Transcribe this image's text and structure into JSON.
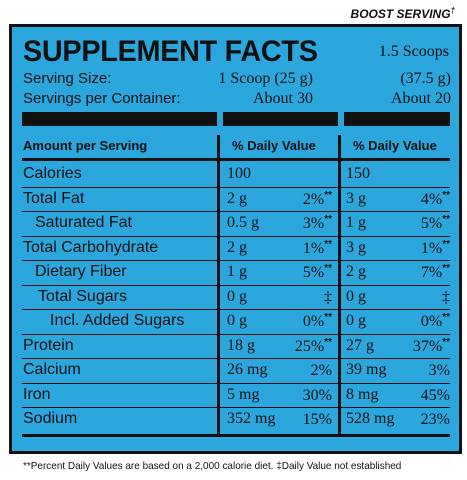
{
  "boost_label": "BOOST SERVING",
  "boost_mark": "†",
  "title": "SUPPLEMENT FACTS",
  "boost_scoops": "1.5 Scoops",
  "serving_size_label": "Serving Size:",
  "serving_size_1": "1 Scoop (25 g)",
  "serving_size_2": "(37.5 g)",
  "servings_label": "Servings per Container:",
  "servings_1": "About 30",
  "servings_2": "About 20",
  "header": {
    "amount": "Amount per Serving",
    "dv1": "% Daily Value",
    "dv2": "% Daily Value"
  },
  "rows": [
    {
      "name": "Calories",
      "v1": "100",
      "p1": "",
      "m1": "",
      "v2": "150",
      "p2": "",
      "m2": ""
    },
    {
      "name": "Total Fat",
      "v1": "2 g",
      "p1": "2%",
      "m1": "**",
      "v2": "3 g",
      "p2": "4%",
      "m2": "**"
    },
    {
      "name": "Saturated Fat",
      "v1": "0.5 g",
      "p1": "3%",
      "m1": "**",
      "v2": "1 g",
      "p2": "5%",
      "m2": "**"
    },
    {
      "name": "Total Carbohydrate",
      "v1": "2 g",
      "p1": "1%",
      "m1": "**",
      "v2": "3 g",
      "p2": "1%",
      "m2": "**"
    },
    {
      "name": "Dietary Fiber",
      "v1": "1 g",
      "p1": "5%",
      "m1": "**",
      "v2": "2 g",
      "p2": "7%",
      "m2": "**"
    },
    {
      "name": "Total Sugars",
      "v1": "0 g",
      "p1": "‡",
      "m1": "",
      "v2": "0 g",
      "p2": "‡",
      "m2": ""
    },
    {
      "name": "Incl. Added Sugars",
      "v1": "0 g",
      "p1": "0%",
      "m1": "**",
      "v2": "0 g",
      "p2": "0%",
      "m2": "**"
    },
    {
      "name": "Protein",
      "v1": "18 g",
      "p1": "25%",
      "m1": "**",
      "v2": "27 g",
      "p2": "37%",
      "m2": "**"
    },
    {
      "name": "Calcium",
      "v1": "26 mg",
      "p1": "2%",
      "m1": "",
      "v2": "39 mg",
      "p2": "3%",
      "m2": ""
    },
    {
      "name": "Iron",
      "v1": "5 mg",
      "p1": "30%",
      "m1": "",
      "v2": "8 mg",
      "p2": "45%",
      "m2": ""
    },
    {
      "name": "Sodium",
      "v1": "352 mg",
      "p1": "15%",
      "m1": "",
      "v2": "528 mg",
      "p2": "23%",
      "m2": ""
    }
  ],
  "footnote": "**Percent Daily Values are based on a 2,000 calorie diet.  ‡Daily Value not established",
  "colors": {
    "label_bg": "#2ba7dd",
    "ink": "#111111"
  }
}
